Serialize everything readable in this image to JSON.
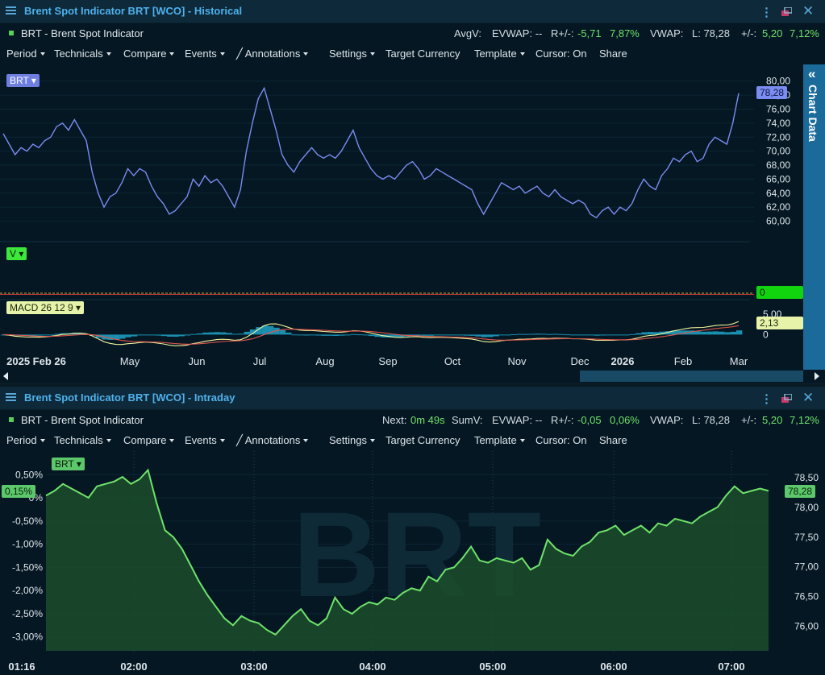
{
  "top": {
    "title": "Brent Spot Indicator BRT [WCO] - Historical",
    "instrument": "BRT - Brent Spot Indicator",
    "info": {
      "avgv": "AvgV:",
      "evwap": "EVWAP: --",
      "r_label": "R+/-:",
      "r_abs": "-5,71",
      "r_pct": "7,87%",
      "vwap": "VWAP:",
      "last": "L: 78,28",
      "chg_label": "+/-:",
      "chg_abs": "5,20",
      "chg_pct": "7,12%"
    },
    "toolbar": {
      "period": "Period",
      "technicals": "Technicals",
      "compare": "Compare",
      "events": "Events",
      "annotations": "Annotations",
      "settings": "Settings",
      "target_currency": "Target Currency",
      "template": "Template",
      "cursor": "Cursor: On",
      "share": "Share"
    },
    "side_tab": "Chart Data",
    "price_tag": "BRT",
    "volume_tag": "V",
    "macd_tag": "MACD 26 12 9",
    "price_marker": "78,28",
    "volume_marker": "0",
    "macd_marker": "2,13"
  },
  "bottom": {
    "title": "Brent Spot Indicator BRT [WCO] - Intraday",
    "instrument": "BRT - Brent Spot Indicator",
    "info": {
      "next_label": "Next:",
      "next_val": "0m 49s",
      "sumv": "SumV:",
      "evwap": "EVWAP: --",
      "r_label": "R+/-:",
      "r_abs": "-0,05",
      "r_pct": "0,06%",
      "vwap": "VWAP:",
      "last": "L: 78,28",
      "chg_label": "+/-:",
      "chg_abs": "5,20",
      "chg_pct": "7,12%"
    },
    "toolbar": {
      "period": "Period",
      "technicals": "Technicals",
      "compare": "Compare",
      "events": "Events",
      "annotations": "Annotations",
      "settings": "Settings",
      "target_currency": "Target Currency",
      "template": "Template",
      "cursor": "Cursor: On",
      "share": "Share"
    },
    "price_tag": "BRT",
    "watermark": "BRT",
    "pct_marker": "0,15%",
    "price_marker": "78,28"
  },
  "colors": {
    "historical_line": "#7b8cf2",
    "intraday_line": "#6fe36a",
    "intraday_fill": "#1c4d2a",
    "macd_line": "#f2f29a",
    "signal_line": "#e0564e",
    "histogram": "#1b8fb0",
    "accent_blue": "#4fb1ec"
  },
  "chart_data": [
    {
      "type": "line",
      "name": "historical-price",
      "ylim": [
        58,
        81
      ],
      "yticks": [
        "80,00",
        "78,00",
        "76,00",
        "74,00",
        "72,00",
        "70,00",
        "68,00",
        "66,00",
        "64,00",
        "62,00",
        "60,00"
      ],
      "xticks": [
        "2025 Feb 26",
        "May",
        "Jun",
        "Jul",
        "Aug",
        "Sep",
        "Oct",
        "Nov",
        "Dec",
        "2026",
        "Feb",
        "Mar"
      ],
      "values": [
        72.5,
        71.0,
        69.5,
        70.5,
        70.0,
        71.0,
        70.5,
        71.5,
        72.0,
        73.5,
        74.0,
        73.0,
        74.5,
        73.0,
        71.5,
        67.0,
        64.0,
        62.0,
        63.5,
        64.0,
        65.5,
        67.5,
        66.5,
        67.5,
        67.0,
        65.0,
        63.5,
        62.5,
        61.0,
        61.5,
        62.5,
        63.5,
        66.0,
        65.0,
        66.5,
        65.5,
        66.0,
        65.0,
        63.5,
        62.0,
        64.5,
        70.0,
        74.0,
        77.5,
        79.0,
        76.0,
        73.0,
        69.5,
        68.0,
        67.0,
        68.5,
        69.5,
        70.5,
        69.5,
        69.0,
        69.5,
        69.0,
        70.0,
        71.5,
        73.0,
        70.5,
        69.0,
        67.5,
        66.5,
        66.0,
        66.5,
        66.0,
        67.0,
        68.0,
        68.5,
        67.5,
        66.0,
        66.5,
        67.5,
        67.0,
        66.5,
        66.0,
        65.5,
        65.0,
        64.5,
        62.5,
        61.0,
        62.5,
        64.0,
        65.5,
        65.0,
        64.5,
        65.0,
        64.0,
        64.5,
        65.0,
        64.0,
        63.5,
        64.5,
        63.5,
        63.0,
        62.5,
        63.0,
        62.5,
        61.0,
        60.5,
        61.5,
        62.0,
        61.0,
        62.0,
        61.5,
        62.5,
        64.5,
        66.0,
        65.0,
        64.5,
        66.5,
        67.5,
        69.0,
        68.5,
        69.5,
        70.0,
        68.5,
        69.0,
        71.0,
        72.0,
        71.5,
        71.0,
        74.0,
        78.28
      ],
      "last_value": 78.28
    },
    {
      "type": "line",
      "name": "macd",
      "ylim": [
        -2.5,
        7
      ],
      "yticks": [
        "5,00",
        "0"
      ],
      "last_value": 2.13
    },
    {
      "type": "area",
      "name": "intraday-percent",
      "ylim": [
        -3.3,
        0.8
      ],
      "yticks_left": [
        "0,50%",
        "0%",
        "-0,50%",
        "-1,00%",
        "-1,50%",
        "-2,00%",
        "-2,50%",
        "-3,00%"
      ],
      "yticks_right": [
        "78,50",
        "78,00",
        "77,50",
        "77,00",
        "76,50",
        "76,00"
      ],
      "xticks": [
        "01:16",
        "02:00",
        "03:00",
        "04:00",
        "05:00",
        "06:00",
        "07:00"
      ],
      "values": [
        0.05,
        0.15,
        0.3,
        0.2,
        0.1,
        0.0,
        0.25,
        0.3,
        0.35,
        0.45,
        0.3,
        0.4,
        0.6,
        -0.1,
        -0.7,
        -0.85,
        -1.1,
        -1.45,
        -1.8,
        -2.1,
        -2.35,
        -2.6,
        -2.75,
        -2.55,
        -2.65,
        -2.7,
        -2.85,
        -2.95,
        -2.75,
        -2.55,
        -2.4,
        -2.65,
        -2.75,
        -2.6,
        -2.15,
        -2.4,
        -2.5,
        -2.35,
        -2.25,
        -2.3,
        -2.15,
        -2.2,
        -2.05,
        -1.95,
        -2.0,
        -1.7,
        -1.8,
        -1.55,
        -1.5,
        -1.3,
        -1.05,
        -1.35,
        -1.4,
        -1.3,
        -1.35,
        -1.4,
        -1.3,
        -1.55,
        -1.45,
        -0.9,
        -1.1,
        -1.2,
        -1.25,
        -1.05,
        -0.95,
        -0.75,
        -0.7,
        -0.6,
        -0.8,
        -0.7,
        -0.6,
        -0.75,
        -0.55,
        -0.6,
        -0.45,
        -0.5,
        -0.55,
        -0.4,
        -0.3,
        -0.2,
        0.05,
        0.25,
        0.1,
        0.15,
        0.2,
        0.15
      ],
      "last_percent": 0.15,
      "last_price": 78.28
    }
  ]
}
